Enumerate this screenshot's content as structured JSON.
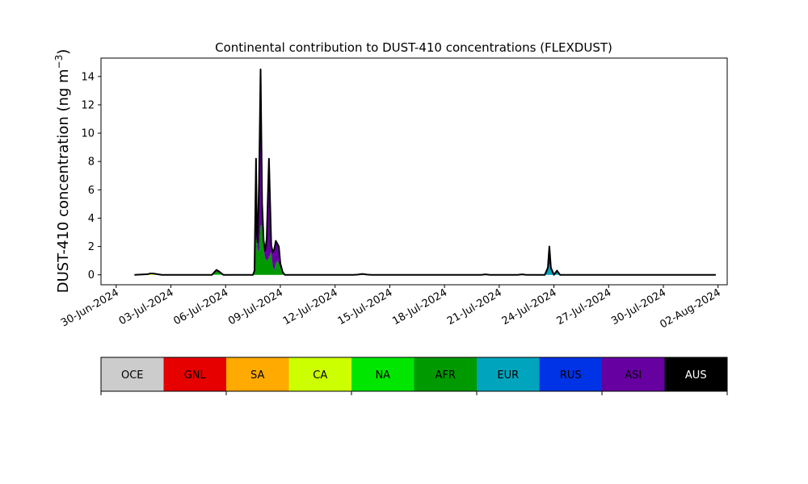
{
  "chart_data": {
    "type": "area",
    "title": "Continental contribution to DUST-410 concentrations (FLEXDUST)",
    "ylabel_main": "DUST-410 concentration (ng m",
    "ylabel_sup": "−3",
    "ylabel_close": ")",
    "xlabel": "",
    "stacked": true,
    "ylim": [
      -0.7,
      15.3
    ],
    "xlim": [
      "2024-06-29T04:00",
      "2024-08-02T12:00"
    ],
    "yticks": [
      0,
      2,
      4,
      6,
      8,
      10,
      12,
      14
    ],
    "ytick_labels": [
      "0",
      "2",
      "4",
      "6",
      "8",
      "10",
      "12",
      "14"
    ],
    "xticks": [
      "2024-06-30",
      "2024-07-03",
      "2024-07-06",
      "2024-07-09",
      "2024-07-12",
      "2024-07-15",
      "2024-07-18",
      "2024-07-21",
      "2024-07-24",
      "2024-07-27",
      "2024-07-30",
      "2024-08-02"
    ],
    "xtick_labels": [
      "30-Jun-2024",
      "03-Jul-2024",
      "06-Jul-2024",
      "09-Jul-2024",
      "12-Jul-2024",
      "15-Jul-2024",
      "18-Jul-2024",
      "21-Jul-2024",
      "24-Jul-2024",
      "27-Jul-2024",
      "30-Jul-2024",
      "02-Aug-2024"
    ],
    "x": [
      "2024-07-01T00:00",
      "2024-07-01T18:00",
      "2024-07-01T21:00",
      "2024-07-02T00:00",
      "2024-07-02T06:00",
      "2024-07-02T12:00",
      "2024-07-05T06:00",
      "2024-07-05T12:00",
      "2024-07-05T15:00",
      "2024-07-05T21:00",
      "2024-07-07T12:00",
      "2024-07-07T14:00",
      "2024-07-07T16:00",
      "2024-07-07T17:00",
      "2024-07-07T18:00",
      "2024-07-07T20:00",
      "2024-07-07T22:00",
      "2024-07-08T00:00",
      "2024-07-08T02:00",
      "2024-07-08T04:00",
      "2024-07-08T06:00",
      "2024-07-08T09:00",
      "2024-07-08T12:00",
      "2024-07-08T14:00",
      "2024-07-08T16:00",
      "2024-07-08T18:00",
      "2024-07-08T20:00",
      "2024-07-08T22:00",
      "2024-07-09T00:00",
      "2024-07-09T03:00",
      "2024-07-09T06:00",
      "2024-07-09T09:00",
      "2024-07-09T12:00",
      "2024-07-09T15:00",
      "2024-07-09T18:00",
      "2024-07-10T00:00",
      "2024-07-10T12:00",
      "2024-07-13T00:00",
      "2024-07-13T06:00",
      "2024-07-13T12:00",
      "2024-07-13T18:00",
      "2024-07-14T00:00",
      "2024-07-20T00:00",
      "2024-07-20T06:00",
      "2024-07-20T12:00",
      "2024-07-22T00:00",
      "2024-07-22T06:00",
      "2024-07-22T12:00",
      "2024-07-23T12:00",
      "2024-07-23T16:00",
      "2024-07-23T18:00",
      "2024-07-23T20:00",
      "2024-07-24T00:00",
      "2024-07-24T04:00",
      "2024-07-24T06:00",
      "2024-07-24T08:00",
      "2024-07-24T12:00",
      "2024-07-30T00:00",
      "2024-07-30T06:00",
      "2024-07-30T12:00",
      "2024-08-01T21:00"
    ],
    "series": [
      {
        "name": "OCE",
        "color": "#cccccc",
        "text_color": "#000000",
        "values": [
          0,
          0,
          0,
          0,
          0,
          0,
          0,
          0,
          0,
          0,
          0,
          0,
          0,
          0,
          0,
          0,
          0,
          0,
          0,
          0,
          0,
          0,
          0,
          0,
          0,
          0,
          0,
          0,
          0,
          0,
          0,
          0,
          0,
          0,
          0,
          0,
          0,
          0,
          0,
          0,
          0,
          0,
          0,
          0,
          0,
          0,
          0,
          0,
          0,
          0,
          0,
          0,
          0,
          0,
          0,
          0,
          0,
          0,
          0,
          0,
          0
        ]
      },
      {
        "name": "GNL",
        "color": "#e60000",
        "text_color": "#000000",
        "values": [
          0,
          0,
          0,
          0,
          0,
          0,
          0,
          0,
          0,
          0,
          0,
          0,
          0,
          0,
          0,
          0,
          0,
          0,
          0,
          0,
          0,
          0,
          0,
          0,
          0,
          0,
          0,
          0,
          0,
          0,
          0,
          0,
          0,
          0,
          0,
          0,
          0,
          0,
          0,
          0,
          0,
          0,
          0,
          0,
          0,
          0,
          0,
          0,
          0,
          0,
          0,
          0,
          0,
          0,
          0,
          0,
          0,
          0,
          0,
          0,
          0
        ]
      },
      {
        "name": "SA",
        "color": "#ffaa00",
        "text_color": "#000000",
        "values": [
          0,
          0,
          0,
          0,
          0,
          0,
          0,
          0,
          0,
          0,
          0,
          0,
          0,
          0,
          0,
          0,
          0,
          0,
          0,
          0,
          0,
          0,
          0,
          0,
          0,
          0,
          0,
          0,
          0,
          0,
          0,
          0,
          0,
          0,
          0,
          0,
          0,
          0,
          0,
          0,
          0,
          0,
          0,
          0,
          0,
          0,
          0,
          0,
          0,
          0,
          0,
          0,
          0,
          0,
          0,
          0,
          0,
          0,
          0,
          0,
          0
        ]
      },
      {
        "name": "CA",
        "color": "#ccff00",
        "text_color": "#000000",
        "values": [
          0,
          0.02,
          0.05,
          0.05,
          0.02,
          0,
          0,
          0,
          0,
          0,
          0,
          0,
          0,
          0,
          0,
          0,
          0,
          0,
          0,
          0,
          0,
          0,
          0,
          0,
          0,
          0,
          0,
          0,
          0,
          0,
          0,
          0,
          0,
          0,
          0,
          0,
          0,
          0,
          0,
          0,
          0,
          0,
          0,
          0,
          0,
          0,
          0,
          0,
          0,
          0,
          0,
          0,
          0,
          0,
          0,
          0,
          0,
          0,
          0,
          0,
          0
        ]
      },
      {
        "name": "NA",
        "color": "#00e600",
        "text_color": "#000000",
        "values": [
          0,
          0.03,
          0.05,
          0.05,
          0.03,
          0,
          0,
          0.05,
          0.05,
          0,
          0,
          0,
          0,
          0,
          0,
          0,
          0,
          0,
          0,
          0,
          0,
          0,
          0,
          0,
          0,
          0,
          0,
          0,
          0,
          0,
          0,
          0,
          0,
          0,
          0,
          0,
          0,
          0,
          0.02,
          0.03,
          0.02,
          0,
          0,
          0,
          0,
          0,
          0,
          0,
          0,
          0,
          0,
          0,
          0,
          0,
          0,
          0,
          0,
          0,
          0,
          0,
          0
        ]
      },
      {
        "name": "AFR",
        "color": "#009900",
        "text_color": "#000000",
        "values": [
          0,
          0,
          0,
          0,
          0,
          0,
          0,
          0.2,
          0.15,
          0,
          0,
          0.3,
          2.5,
          2.6,
          1.8,
          1.6,
          3.5,
          3.5,
          1.8,
          1.2,
          1.0,
          1.2,
          1.6,
          0.6,
          0.3,
          0.8,
          1.0,
          0.8,
          0.5,
          0.2,
          0,
          0,
          0,
          0,
          0,
          0,
          0,
          0,
          0,
          0.03,
          0,
          0,
          0,
          0,
          0,
          0,
          0,
          0,
          0,
          0,
          0,
          0,
          0,
          0,
          0,
          0,
          0,
          0,
          0,
          0,
          0
        ]
      },
      {
        "name": "EUR",
        "color": "#00a5bd",
        "text_color": "#000000",
        "values": [
          0,
          0,
          0,
          0,
          0,
          0,
          0,
          0,
          0,
          0,
          0,
          0,
          0,
          0,
          0,
          0,
          0,
          0,
          0,
          0,
          0,
          0,
          0,
          0,
          0,
          0,
          0,
          0,
          0,
          0,
          0,
          0,
          0,
          0,
          0,
          0,
          0,
          0,
          0,
          0,
          0,
          0,
          0,
          0.03,
          0,
          0,
          0.03,
          0,
          0,
          0.3,
          0.8,
          0.3,
          0,
          0.2,
          0.1,
          0,
          0,
          0,
          0,
          0,
          0
        ]
      },
      {
        "name": "RUS",
        "color": "#0033e6",
        "text_color": "#000000",
        "values": [
          0,
          0,
          0,
          0,
          0,
          0,
          0,
          0,
          0,
          0,
          0,
          0,
          0,
          0,
          0,
          0,
          0,
          0,
          0,
          0,
          0,
          0,
          0,
          0,
          0,
          0,
          0,
          0,
          0,
          0,
          0,
          0,
          0,
          0,
          0,
          0,
          0,
          0,
          0,
          0,
          0,
          0,
          0,
          0,
          0,
          0,
          0,
          0,
          0,
          0,
          0,
          0,
          0,
          0,
          0,
          0,
          0,
          0,
          0,
          0,
          0
        ]
      },
      {
        "name": "ASI",
        "color": "#6600a1",
        "text_color": "#000000",
        "values": [
          0,
          0,
          0,
          0,
          0,
          0,
          0,
          0.1,
          0.05,
          0,
          0,
          0,
          5.7,
          0.5,
          0.5,
          5.0,
          11.0,
          1.5,
          0.6,
          0.5,
          1.5,
          7.0,
          0.5,
          1.0,
          1.5,
          1.6,
          1.2,
          1.2,
          0.3,
          0,
          0,
          0,
          0,
          0,
          0,
          0,
          0,
          0,
          0,
          0,
          0,
          0,
          0,
          0,
          0,
          0,
          0,
          0,
          0,
          0.2,
          1.2,
          0.2,
          0,
          0.1,
          0.05,
          0,
          0,
          0,
          0,
          0,
          0
        ]
      },
      {
        "name": "AUS",
        "color": "#000000",
        "text_color": "#ffffff",
        "values": [
          0,
          0,
          0,
          0,
          0,
          0,
          0,
          0,
          0,
          0,
          0,
          0,
          0,
          0,
          0,
          0,
          0,
          0,
          0,
          0,
          0,
          0,
          0,
          0,
          0,
          0,
          0,
          0,
          0,
          0,
          0,
          0,
          0,
          0,
          0,
          0,
          0,
          0,
          0,
          0,
          0,
          0,
          0,
          0,
          0,
          0,
          0,
          0,
          0,
          0,
          0,
          0,
          0,
          0,
          0,
          0,
          0,
          0,
          0,
          0,
          0
        ]
      }
    ],
    "legend_placement": "below"
  }
}
